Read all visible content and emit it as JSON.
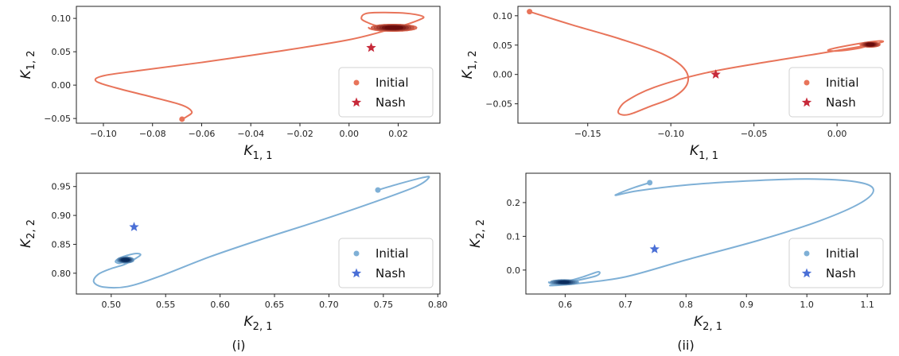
{
  "captions": [
    "(i)",
    "(ii)"
  ],
  "legend": {
    "initial_label": "Initial",
    "nash_label": "Nash"
  },
  "colors": {
    "red_line": "#e8745a",
    "red_dark": "#6b0d0d",
    "red_star": "#c72a3a",
    "blue_line": "#7fb0d6",
    "blue_dark": "#0b2d5e",
    "blue_star": "#4a6fd6"
  },
  "chart_data": [
    {
      "type": "line",
      "panel": "(i) top",
      "xlabel_base": "K",
      "xlabel_sub": "1, 1",
      "ylabel_base": "K",
      "ylabel_sub": "1, 2",
      "xlim": [
        -0.111,
        0.037
      ],
      "ylim": [
        -0.057,
        0.118
      ],
      "xticks": [
        -0.1,
        -0.08,
        -0.06,
        -0.04,
        -0.02,
        0.0,
        0.02
      ],
      "xtick_labels": [
        "−0.10",
        "−0.08",
        "−0.06",
        "−0.04",
        "−0.02",
        "0.00",
        "0.02"
      ],
      "yticks": [
        -0.05,
        0.0,
        0.05,
        0.1
      ],
      "ytick_labels": [
        "−0.05",
        "0.00",
        "0.05",
        "0.10"
      ],
      "theme": "red",
      "initial": [
        -0.068,
        -0.051
      ],
      "nash": [
        0.009,
        0.056
      ],
      "trajectory": [
        [
          -0.068,
          -0.051
        ],
        [
          -0.066,
          -0.047
        ],
        [
          -0.064,
          -0.04
        ],
        [
          -0.068,
          -0.03
        ],
        [
          -0.08,
          -0.018
        ],
        [
          -0.095,
          -0.004
        ],
        [
          -0.103,
          0.006
        ],
        [
          -0.1,
          0.014
        ],
        [
          -0.085,
          0.022
        ],
        [
          -0.06,
          0.034
        ],
        [
          -0.03,
          0.05
        ],
        [
          0.0,
          0.068
        ],
        [
          0.018,
          0.085
        ],
        [
          0.028,
          0.097
        ],
        [
          0.03,
          0.103
        ],
        [
          0.022,
          0.108
        ],
        [
          0.008,
          0.108
        ],
        [
          0.005,
          0.1
        ],
        [
          0.008,
          0.093
        ],
        [
          0.012,
          0.088
        ]
      ],
      "spiral": {
        "center": [
          0.018,
          0.086
        ],
        "rx": [
          0.01,
          0.002
        ],
        "ry": [
          0.005,
          0.001
        ]
      }
    },
    {
      "type": "line",
      "panel": "(ii) top",
      "xlabel_base": "K",
      "xlabel_sub": "1, 1",
      "ylabel_base": "K",
      "ylabel_sub": "1, 2",
      "xlim": [
        -0.192,
        0.032
      ],
      "ylim": [
        -0.083,
        0.116
      ],
      "xticks": [
        -0.15,
        -0.1,
        -0.05,
        0.0
      ],
      "xtick_labels": [
        "−0.15",
        "−0.10",
        "−0.05",
        "0.00"
      ],
      "yticks": [
        -0.05,
        0.0,
        0.05,
        0.1
      ],
      "ytick_labels": [
        "−0.05",
        "0.00",
        "0.05",
        "0.10"
      ],
      "theme": "red",
      "initial": [
        -0.185,
        0.107
      ],
      "nash": [
        -0.073,
        0.0
      ],
      "trajectory": [
        [
          -0.185,
          0.107
        ],
        [
          -0.16,
          0.085
        ],
        [
          -0.13,
          0.06
        ],
        [
          -0.105,
          0.035
        ],
        [
          -0.092,
          0.01
        ],
        [
          -0.09,
          -0.015
        ],
        [
          -0.098,
          -0.038
        ],
        [
          -0.113,
          -0.055
        ],
        [
          -0.125,
          -0.068
        ],
        [
          -0.131,
          -0.067
        ],
        [
          -0.131,
          -0.058
        ],
        [
          -0.126,
          -0.044
        ],
        [
          -0.11,
          -0.022
        ],
        [
          -0.08,
          0.002
        ],
        [
          -0.045,
          0.02
        ],
        [
          -0.01,
          0.036
        ],
        [
          0.015,
          0.048
        ],
        [
          0.027,
          0.055
        ],
        [
          0.025,
          0.057
        ],
        [
          0.012,
          0.052
        ],
        [
          -0.005,
          0.042
        ],
        [
          0.0,
          0.04
        ],
        [
          0.012,
          0.044
        ],
        [
          0.02,
          0.05
        ]
      ],
      "spiral": {
        "center": [
          0.02,
          0.051
        ],
        "rx": [
          0.006,
          0.001
        ],
        "ry": [
          0.004,
          0.001
        ]
      }
    },
    {
      "type": "line",
      "panel": "(i) bottom",
      "xlabel_base": "K",
      "xlabel_sub": "2, 1",
      "ylabel_base": "K",
      "ylabel_sub": "2, 2",
      "xlim": [
        0.468,
        0.802
      ],
      "ylim": [
        0.764,
        0.973
      ],
      "xticks": [
        0.5,
        0.55,
        0.6,
        0.65,
        0.7,
        0.75,
        0.8
      ],
      "xtick_labels": [
        "0.50",
        "0.55",
        "0.60",
        "0.65",
        "0.70",
        "0.75",
        "0.80"
      ],
      "yticks": [
        0.8,
        0.85,
        0.9,
        0.95
      ],
      "ytick_labels": [
        "0.80",
        "0.85",
        "0.90",
        "0.95"
      ],
      "theme": "blue",
      "initial": [
        0.745,
        0.944
      ],
      "nash": [
        0.521,
        0.88
      ],
      "trajectory": [
        [
          0.745,
          0.944
        ],
        [
          0.765,
          0.955
        ],
        [
          0.785,
          0.965
        ],
        [
          0.792,
          0.966
        ],
        [
          0.78,
          0.95
        ],
        [
          0.74,
          0.922
        ],
        [
          0.69,
          0.89
        ],
        [
          0.64,
          0.86
        ],
        [
          0.59,
          0.828
        ],
        [
          0.545,
          0.795
        ],
        [
          0.515,
          0.777
        ],
        [
          0.493,
          0.776
        ],
        [
          0.484,
          0.785
        ],
        [
          0.488,
          0.798
        ],
        [
          0.5,
          0.808
        ],
        [
          0.512,
          0.815
        ],
        [
          0.522,
          0.825
        ],
        [
          0.527,
          0.832
        ],
        [
          0.522,
          0.834
        ],
        [
          0.51,
          0.828
        ],
        [
          0.504,
          0.821
        ],
        [
          0.507,
          0.817
        ],
        [
          0.513,
          0.82
        ]
      ],
      "spiral": {
        "center": [
          0.513,
          0.823
        ],
        "rx": [
          0.008,
          0.002
        ],
        "ry": [
          0.005,
          0.001
        ]
      }
    },
    {
      "type": "line",
      "panel": "(ii) bottom",
      "xlabel_base": "K",
      "xlabel_sub": "2, 1",
      "ylabel_base": "K",
      "ylabel_sub": "2, 2",
      "xlim": [
        0.535,
        1.138
      ],
      "ylim": [
        -0.071,
        0.287
      ],
      "xticks": [
        0.6,
        0.7,
        0.8,
        0.9,
        1.0,
        1.1
      ],
      "xtick_labels": [
        "0.6",
        "0.7",
        "0.8",
        "0.9",
        "1.0",
        "1.1"
      ],
      "yticks": [
        0.0,
        0.1,
        0.2
      ],
      "ytick_labels": [
        "0.0",
        "0.1",
        "0.2"
      ],
      "theme": "blue",
      "initial": [
        0.74,
        0.259
      ],
      "nash": [
        0.748,
        0.062
      ],
      "trajectory": [
        [
          0.74,
          0.259
        ],
        [
          0.715,
          0.245
        ],
        [
          0.69,
          0.228
        ],
        [
          0.685,
          0.222
        ],
        [
          0.72,
          0.235
        ],
        [
          0.8,
          0.252
        ],
        [
          0.9,
          0.264
        ],
        [
          1.0,
          0.27
        ],
        [
          1.08,
          0.262
        ],
        [
          1.11,
          0.24
        ],
        [
          1.09,
          0.2
        ],
        [
          1.02,
          0.145
        ],
        [
          0.92,
          0.088
        ],
        [
          0.8,
          0.03
        ],
        [
          0.7,
          -0.02
        ],
        [
          0.62,
          -0.04
        ],
        [
          0.575,
          -0.046
        ],
        [
          0.6,
          -0.038
        ],
        [
          0.65,
          -0.018
        ],
        [
          0.655,
          -0.005
        ],
        [
          0.63,
          -0.02
        ],
        [
          0.61,
          -0.03
        ],
        [
          0.598,
          -0.033
        ]
      ],
      "spiral": {
        "center": [
          0.598,
          -0.036
        ],
        "rx": [
          0.025,
          0.003
        ],
        "ry": [
          0.007,
          0.001
        ]
      }
    }
  ]
}
